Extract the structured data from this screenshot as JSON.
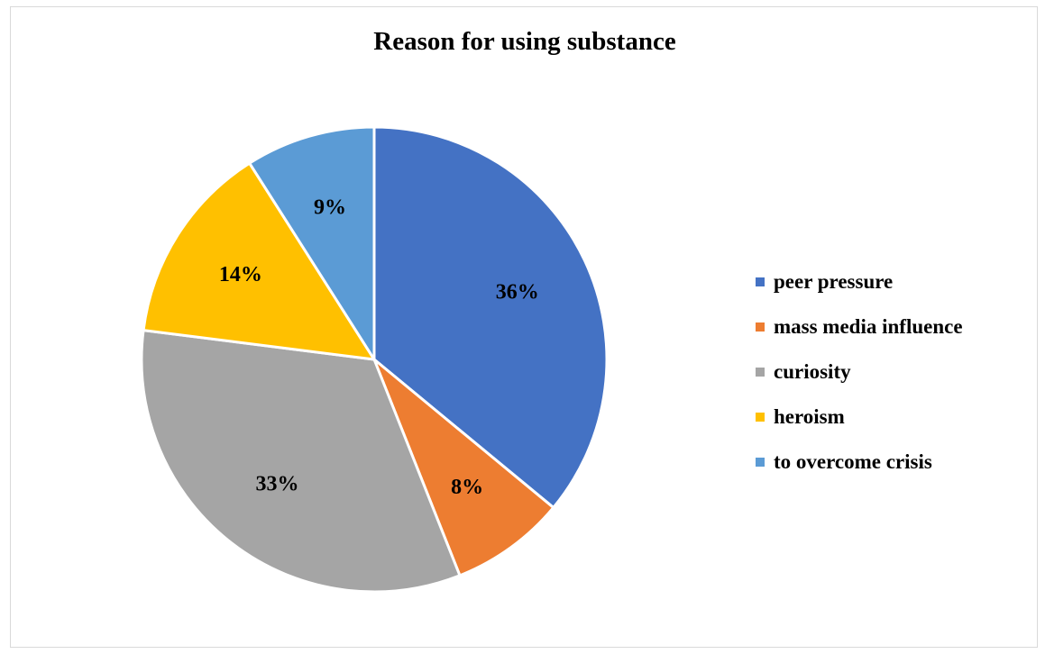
{
  "chart_data": {
    "type": "pie",
    "title": "Reason for using substance",
    "categories": [
      "peer pressure",
      "mass media influence",
      "curiosity",
      "heroism",
      "to overcome crisis"
    ],
    "values": [
      36,
      8,
      33,
      14,
      9
    ],
    "labels": [
      "36%",
      "8%",
      "33%",
      "14%",
      "9%"
    ],
    "colors": [
      "#4472C4",
      "#ED7D31",
      "#A5A5A5",
      "#FFC000",
      "#5B9BD5"
    ],
    "legend": "right",
    "start": "12 o'clock",
    "direction": "clockwise"
  }
}
